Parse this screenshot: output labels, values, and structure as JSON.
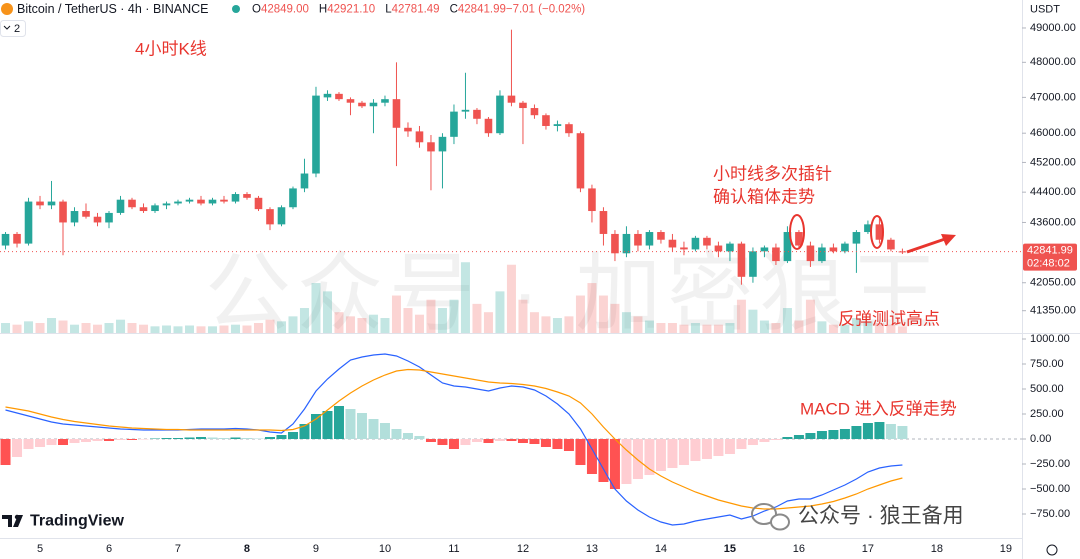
{
  "chart_data": [
    {
      "type": "candlestick",
      "title": "Bitcoin / TetherUS · 4h · BINANCE",
      "currency": "USDT",
      "indicator_count": "2",
      "ohlc_legend": [
        {
          "key": "O",
          "value": "42849.00"
        },
        {
          "key": "H",
          "value": "42921.10"
        },
        {
          "key": "L",
          "value": "42781.49"
        },
        {
          "key": "C",
          "value": "42841.99"
        },
        {
          "key": "",
          "value": "−7.01 (−0.02%)"
        }
      ],
      "annotations": [
        "4小时K线",
        "小时线多次插针",
        "确认箱体走势",
        "反弹测试高点"
      ],
      "xlim": [
        -0.48,
        88.4
      ],
      "xticks": [
        {
          "value": 3,
          "label": "5"
        },
        {
          "value": 9,
          "label": "6"
        },
        {
          "value": 15,
          "label": "7"
        },
        {
          "value": 21,
          "label": "8"
        },
        {
          "value": 27,
          "label": "9"
        },
        {
          "value": 33,
          "label": "10"
        },
        {
          "value": 39,
          "label": "11"
        },
        {
          "value": 45,
          "label": "12"
        },
        {
          "value": 51,
          "label": "13"
        },
        {
          "value": 57,
          "label": "14"
        },
        {
          "value": 63,
          "label": "15"
        },
        {
          "value": 69,
          "label": "16"
        },
        {
          "value": 75,
          "label": "17"
        },
        {
          "value": 81,
          "label": "18"
        },
        {
          "value": 87,
          "label": "19"
        }
      ],
      "ylim": [
        40800,
        49830
      ],
      "log_scale": true,
      "grid": false,
      "yticks": [
        {
          "value": 49000,
          "label": "49000.00"
        },
        {
          "value": 48000,
          "label": "48000.00"
        },
        {
          "value": 47000,
          "label": "47000.00"
        },
        {
          "value": 46000,
          "label": "46000.00"
        },
        {
          "value": 45200,
          "label": "45200.00"
        },
        {
          "value": 44400,
          "label": "44400.00"
        },
        {
          "value": 43600,
          "label": "43600.00"
        },
        {
          "value": 42050,
          "label": "42050.00"
        },
        {
          "value": 41350,
          "label": "41350.00"
        }
      ],
      "open": [
        43000,
        43300,
        43050,
        44150,
        44050,
        44150,
        43600,
        43900,
        43750,
        43600,
        43850,
        44200,
        44000,
        43900,
        44050,
        44100,
        44150,
        44200,
        44100,
        44200,
        44150,
        44350,
        44250,
        43950,
        43550,
        44000,
        44500,
        44900,
        47000,
        47100,
        46950,
        46850,
        46750,
        46850,
        46950,
        46150,
        46050,
        45750,
        45500,
        45900,
        46600,
        46650,
        46400,
        46000,
        47050,
        46850,
        46700,
        46500,
        46200,
        46250,
        46000,
        44500,
        43900,
        43300,
        42800,
        43300,
        43000,
        43350,
        43150,
        42950,
        42900,
        43200,
        43000,
        42850,
        43050,
        42200,
        42850,
        42950,
        42600,
        43350,
        43000,
        42600,
        42950,
        42850,
        43050,
        43350,
        43550,
        43150,
        42849
      ],
      "high": [
        43350,
        43350,
        44250,
        44300,
        44700,
        44200,
        44000,
        44100,
        43850,
        43900,
        44300,
        44250,
        44100,
        44100,
        44150,
        44200,
        44250,
        44300,
        44250,
        44300,
        44400,
        44400,
        44300,
        44000,
        44050,
        44550,
        45300,
        47300,
        47200,
        47150,
        47000,
        46900,
        46950,
        47050,
        48000,
        46300,
        46200,
        45950,
        46000,
        46800,
        47700,
        46700,
        46450,
        47200,
        48950,
        46900,
        46800,
        46550,
        46350,
        46300,
        46050,
        44600,
        44000,
        43400,
        43500,
        43400,
        43400,
        43400,
        43300,
        43100,
        43250,
        43250,
        43100,
        43100,
        43100,
        42950,
        43000,
        43050,
        43500,
        43400,
        43100,
        43050,
        43050,
        43100,
        43400,
        43650,
        43700,
        43200,
        42921.1
      ],
      "low": [
        42900,
        42950,
        43000,
        43950,
        43950,
        42750,
        43500,
        43700,
        43500,
        43450,
        43800,
        43950,
        43850,
        43850,
        43950,
        44050,
        44100,
        44050,
        44050,
        44100,
        44100,
        44200,
        43900,
        43400,
        43500,
        43950,
        44400,
        44800,
        46900,
        46900,
        46500,
        46700,
        46000,
        46750,
        45100,
        45900,
        45600,
        44450,
        44500,
        45700,
        46400,
        46250,
        45900,
        45950,
        46750,
        45700,
        46400,
        46100,
        46050,
        45900,
        44400,
        43600,
        43000,
        42600,
        42700,
        42850,
        42900,
        43050,
        42850,
        42750,
        42850,
        42900,
        42700,
        42600,
        42000,
        42050,
        42700,
        42500,
        42550,
        42900,
        42450,
        42550,
        42800,
        42800,
        42300,
        43300,
        43050,
        42850,
        42781.49
      ],
      "close": [
        43300,
        43050,
        44150,
        44050,
        44150,
        43600,
        43900,
        43750,
        43600,
        43850,
        44200,
        44000,
        43900,
        44050,
        44100,
        44150,
        44200,
        44100,
        44200,
        44150,
        44350,
        44250,
        43950,
        43550,
        44000,
        44500,
        44900,
        47050,
        47100,
        46950,
        46850,
        46750,
        46850,
        46950,
        46150,
        46050,
        45750,
        45500,
        45900,
        46600,
        46650,
        46400,
        46000,
        47050,
        46850,
        46700,
        46500,
        46200,
        46250,
        46000,
        44500,
        43900,
        43300,
        42800,
        43300,
        43000,
        43350,
        43150,
        42950,
        42900,
        43200,
        43000,
        42850,
        43050,
        42200,
        42850,
        42950,
        42600,
        43350,
        43000,
        42600,
        42950,
        42850,
        43050,
        43350,
        43550,
        43150,
        42900,
        42841.99
      ],
      "volume": [
        12,
        10,
        14,
        12,
        18,
        15,
        10,
        12,
        10,
        12,
        16,
        12,
        10,
        8,
        9,
        8,
        9,
        8,
        8,
        9,
        10,
        9,
        12,
        16,
        14,
        20,
        30,
        60,
        50,
        25,
        20,
        18,
        22,
        18,
        45,
        30,
        22,
        40,
        30,
        40,
        85,
        35,
        25,
        50,
        82,
        40,
        25,
        20,
        18,
        20,
        45,
        60,
        45,
        35,
        25,
        20,
        15,
        12,
        12,
        10,
        12,
        10,
        10,
        12,
        40,
        28,
        15,
        12,
        30,
        15,
        40,
        14,
        10,
        10,
        18,
        14,
        12,
        10,
        8
      ],
      "vlim": [
        0,
        400
      ],
      "up_color": "#26a69a",
      "down_color": "#ef5350",
      "volume_up_color": "rgba(38,166,154,0.28)",
      "volume_down_color": "rgba(239,83,80,0.25)",
      "current_price": {
        "value": 42841.99,
        "label": "42841.99"
      },
      "countdown": "02:48:02"
    },
    {
      "type": "macd",
      "annotations": [
        "MACD 进入反弹走势"
      ],
      "ylim": [
        -990,
        1050
      ],
      "yticks": [
        {
          "value": 1000,
          "label": "1000.00"
        },
        {
          "value": 750,
          "label": "750.00"
        },
        {
          "value": 500,
          "label": "500.00"
        },
        {
          "value": 250,
          "label": "250.00"
        },
        {
          "value": 0,
          "label": "0.00"
        },
        {
          "value": -250,
          "label": "−250.00"
        },
        {
          "value": -500,
          "label": "−500.00"
        },
        {
          "value": -750,
          "label": "−750.00"
        }
      ],
      "histogram": {
        "values": [
          -260,
          -180,
          -100,
          -80,
          -60,
          -60,
          -40,
          -30,
          -20,
          -20,
          -10,
          -10,
          -5,
          5,
          10,
          10,
          15,
          20,
          15,
          10,
          15,
          10,
          5,
          20,
          40,
          70,
          150,
          250,
          280,
          330,
          300,
          260,
          200,
          160,
          100,
          60,
          30,
          -30,
          -60,
          -100,
          -60,
          -30,
          -40,
          -20,
          -20,
          -40,
          -50,
          -80,
          -100,
          -120,
          -260,
          -350,
          -430,
          -500,
          -450,
          -400,
          -360,
          -320,
          -290,
          -260,
          -220,
          -200,
          -170,
          -150,
          -100,
          -60,
          -30,
          -10,
          20,
          40,
          60,
          80,
          90,
          100,
          130,
          160,
          170,
          150,
          130
        ],
        "colors": {
          "up_grow": "#26a69a",
          "up_fall": "#b2dfdb",
          "down_grow": "#ff5252",
          "down_fall": "#ffcdd2"
        }
      },
      "series": [
        {
          "color": "#2962ff",
          "values": [
            290,
            260,
            230,
            200,
            170,
            150,
            140,
            130,
            120,
            110,
            100,
            95,
            90,
            90,
            90,
            90,
            95,
            100,
            100,
            100,
            105,
            100,
            90,
            70,
            60,
            150,
            300,
            480,
            600,
            700,
            790,
            820,
            840,
            850,
            830,
            780,
            720,
            640,
            560,
            530,
            520,
            500,
            480,
            510,
            530,
            520,
            490,
            430,
            350,
            250,
            100,
            -100,
            -300,
            -500,
            -620,
            -710,
            -780,
            -830,
            -860,
            -850,
            -820,
            -800,
            -780,
            -760,
            -800,
            -770,
            -720,
            -680,
            -620,
            -600,
            -600,
            -560,
            -510,
            -460,
            -400,
            -330,
            -290,
            -270,
            -260
          ]
        },
        {
          "color": "#ff9800",
          "values": [
            320,
            300,
            280,
            250,
            220,
            195,
            175,
            160,
            145,
            130,
            120,
            110,
            105,
            100,
            95,
            95,
            90,
            90,
            90,
            90,
            90,
            90,
            90,
            90,
            85,
            95,
            130,
            200,
            290,
            380,
            460,
            530,
            590,
            640,
            680,
            695,
            690,
            670,
            650,
            630,
            610,
            590,
            570,
            560,
            555,
            545,
            530,
            505,
            470,
            430,
            360,
            250,
            120,
            0,
            -110,
            -210,
            -300,
            -370,
            -430,
            -480,
            -530,
            -570,
            -610,
            -640,
            -670,
            -690,
            -700,
            -700,
            -690,
            -680,
            -670,
            -650,
            -625,
            -590,
            -550,
            -500,
            -460,
            -420,
            -390
          ]
        }
      ]
    }
  ],
  "watermark": "公众号 · 加密狼王",
  "logo": "TradingView",
  "footer": "公众号 · 狼王备用"
}
